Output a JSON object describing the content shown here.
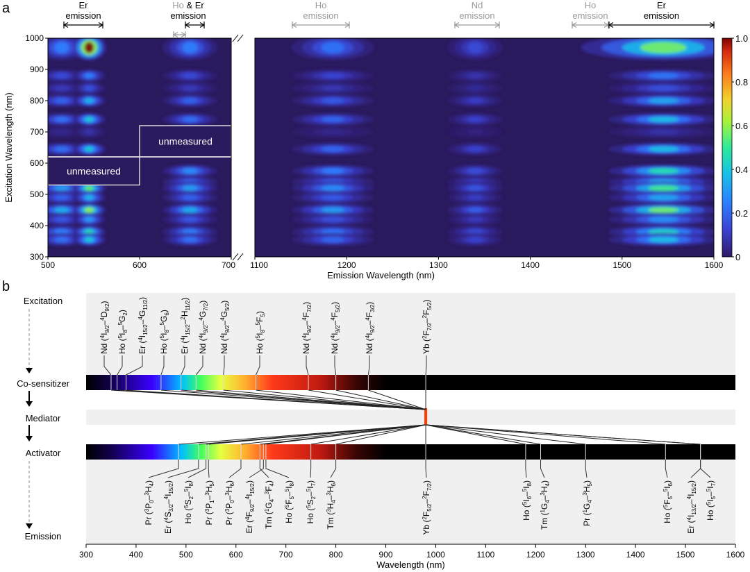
{
  "chart_data": [
    {
      "panel": "a",
      "type": "heatmap",
      "xlabel": "Emission Wavelength (nm)",
      "ylabel": "Excitation Wavelength (nm)",
      "x_left_ticks": [
        500,
        600,
        700
      ],
      "x_right_ticks": [
        1100,
        1200,
        1300,
        1400,
        1500,
        1600
      ],
      "x_left_range": [
        500,
        700
      ],
      "x_right_range": [
        1100,
        1600
      ],
      "ylim": [
        300,
        1000
      ],
      "y_ticks": [
        300,
        400,
        500,
        600,
        700,
        800,
        900,
        1000
      ],
      "colorbar": {
        "ticks": [
          "0",
          "0.2",
          "0.4",
          "0.6",
          "0.8",
          "1.0"
        ],
        "range": [
          0,
          1
        ]
      },
      "region_labels": [
        "unmeasured",
        "unmeasured"
      ],
      "band_labels": [
        {
          "text": [
            "Er",
            "emission"
          ],
          "tone": "black"
        },
        {
          "text": [
            "Ho",
            "emission"
          ],
          "tone": "gray"
        },
        {
          "text": [
            "Nd",
            "emission"
          ],
          "tone": "gray"
        },
        {
          "text": [
            "Ho",
            "emission"
          ],
          "tone": "gray"
        },
        {
          "text": [
            "Er",
            "emission"
          ],
          "tone": "black"
        }
      ],
      "combo_label": {
        "first": "Ho",
        "amp": "&",
        "second": "Er",
        "second_line": "emission"
      },
      "excitation_rows": [
        {
          "y": 970,
          "level": 0.5
        },
        {
          "y": 880,
          "level": 0.3
        },
        {
          "y": 840,
          "level": 0.2
        },
        {
          "y": 800,
          "level": 0.4
        },
        {
          "y": 740,
          "level": 0.45
        },
        {
          "y": 700,
          "level": 0.1
        },
        {
          "y": 645,
          "level": 0.45
        },
        {
          "y": 575,
          "level": 0.55
        },
        {
          "y": 540,
          "level": 0.4
        },
        {
          "y": 520,
          "level": 0.6
        },
        {
          "y": 490,
          "level": 0.4
        },
        {
          "y": 450,
          "level": 0.65
        },
        {
          "y": 420,
          "level": 0.35
        },
        {
          "y": 380,
          "level": 0.5
        },
        {
          "y": 355,
          "level": 0.45
        }
      ],
      "emission_bands": [
        {
          "x": 515,
          "w": 28,
          "gain": 0.6
        },
        {
          "x": 545,
          "w": 18,
          "gain": 1.0
        },
        {
          "x": 655,
          "w": 30,
          "gain": 0.6
        },
        {
          "x": 1185,
          "w": 45,
          "gain": 0.55
        },
        {
          "x": 1340,
          "w": 30,
          "gain": 0.35
        },
        {
          "x": 1545,
          "w": 60,
          "gain": 0.95
        }
      ]
    },
    {
      "panel": "b",
      "type": "diagram",
      "xlabel": "Wavelength (nm)",
      "xlim": [
        300,
        1600
      ],
      "x_ticks": [
        300,
        400,
        500,
        600,
        700,
        800,
        900,
        1000,
        1100,
        1200,
        1300,
        1400,
        1500,
        1600
      ],
      "row_labels": [
        "Excitation",
        "Co-sensitizer",
        "Mediator",
        "Activator",
        "Emission"
      ],
      "mediator_x": 980,
      "excitation_lines": [
        {
          "x": 350,
          "label": [
            "Nd (",
            "4",
            "I",
            "9/2",
            "–",
            "4",
            "D",
            "9/2",
            ")"
          ]
        },
        {
          "x": 362,
          "label": [
            "Ho (",
            "5",
            "I",
            "8",
            "–",
            "5",
            "G",
            "2",
            ")"
          ]
        },
        {
          "x": 380,
          "label": [
            "Er (",
            "4",
            "I",
            "15/2",
            "–",
            "4",
            "G",
            "11/2",
            ")"
          ]
        },
        {
          "x": 450,
          "label": [
            "Ho (",
            "5",
            "I",
            "8",
            "–",
            "5",
            "G",
            "6",
            ")"
          ]
        },
        {
          "x": 490,
          "label": [
            "Er (",
            "4",
            "I",
            "15/2",
            "–",
            "2",
            "H",
            "11/2",
            ")"
          ]
        },
        {
          "x": 520,
          "label": [
            "Nd (",
            "4",
            "I",
            "9/2",
            "–",
            "4",
            "G",
            "7/2",
            ")"
          ]
        },
        {
          "x": 575,
          "label": [
            "Nd (",
            "4",
            "I",
            "9/2",
            "–",
            "4",
            "G",
            "5/2",
            ")"
          ]
        },
        {
          "x": 640,
          "label": [
            "Ho (",
            "5",
            "I",
            "8",
            "–",
            "5",
            "F",
            "5",
            ")"
          ]
        },
        {
          "x": 745,
          "label": [
            "Nd (",
            "4",
            "I",
            "9/2",
            "–",
            "4",
            "F",
            "7/2",
            ")"
          ]
        },
        {
          "x": 800,
          "label": [
            "Nd (",
            "4",
            "I",
            "9/2",
            "–",
            "4",
            "F",
            "5/2",
            ")"
          ]
        },
        {
          "x": 865,
          "label": [
            "Nd (",
            "4",
            "I",
            "9/2",
            "–",
            "4",
            "F",
            "3/2",
            ")"
          ]
        },
        {
          "x": 980,
          "label": [
            "Yb (",
            "2",
            "F",
            "7/2",
            "–",
            "2",
            "F",
            "5/2",
            ")"
          ]
        }
      ],
      "emission_lines": [
        {
          "x": 485,
          "label": [
            "Pr (",
            "3",
            "P",
            "0",
            "–",
            "3",
            "H",
            "4",
            ")"
          ]
        },
        {
          "x": 525,
          "label": [
            "Er (",
            "4",
            "S",
            "3/2",
            "–",
            "4",
            "I",
            "15/2",
            ")"
          ]
        },
        {
          "x": 540,
          "label": [
            "Ho (",
            "5",
            "S",
            "2",
            "–",
            "5",
            "I",
            "8",
            ")"
          ]
        },
        {
          "x": 545,
          "label": [
            "Pr (",
            "3",
            "P",
            "1",
            "–",
            "3",
            "H",
            "5",
            ")"
          ]
        },
        {
          "x": 610,
          "label": [
            "Pr (",
            "3",
            "P",
            "0",
            "–",
            "3",
            "H",
            "6",
            ")"
          ]
        },
        {
          "x": 655,
          "label": [
            "Er (",
            "4",
            "F",
            "9/2",
            "–",
            "4",
            "I",
            "15/2",
            ")"
          ]
        },
        {
          "x": 648,
          "label": [
            "Tm (",
            "1",
            "G",
            "4",
            "–",
            "3",
            "F",
            "4",
            ")"
          ]
        },
        {
          "x": 660,
          "label": [
            "Ho (",
            "5",
            "F",
            "5",
            "–",
            "5",
            "I",
            "8",
            ")"
          ]
        },
        {
          "x": 750,
          "label": [
            "Ho (",
            "5",
            "S",
            "2",
            "–",
            "5",
            "I",
            "7",
            ")"
          ]
        },
        {
          "x": 800,
          "label": [
            "Tm (",
            "3",
            "H",
            "4",
            "–",
            "3",
            "H",
            "6",
            ")"
          ]
        },
        {
          "x": 980,
          "label": [
            "Yb (",
            "2",
            "F",
            "5/2",
            "–",
            "2",
            "F",
            "7/2",
            ")"
          ]
        },
        {
          "x": 1180,
          "label": [
            "Ho (",
            "5",
            "I",
            "6",
            "–",
            "5",
            "I",
            "8",
            ")"
          ]
        },
        {
          "x": 1210,
          "label": [
            "Tm (",
            "1",
            "G",
            "4",
            "–",
            "3",
            "H",
            "4",
            ")"
          ]
        },
        {
          "x": 1300,
          "label": [
            "Pr (",
            "1",
            "G",
            "4",
            "–",
            "3",
            "H",
            "5",
            ")"
          ]
        },
        {
          "x": 1460,
          "label": [
            "Ho (",
            "5",
            "F",
            "5",
            "–",
            "5",
            "I",
            "6",
            ")"
          ]
        },
        {
          "x": 1530,
          "label": [
            "Er (",
            "4",
            "I",
            "13/2",
            "–",
            "4",
            "I",
            "15/2",
            ")"
          ]
        },
        {
          "x": 1530,
          "label": [
            "Ho (",
            "5",
            "I",
            "5",
            "–",
            "5",
            "I",
            "7",
            ")"
          ]
        }
      ]
    }
  ],
  "panel_labels": [
    "a",
    "b"
  ],
  "colors": {
    "heat_bg": "#2a1a5e",
    "bar_bg": "#000000",
    "strip_bg": "#f0f0f0",
    "mediator": "#ff3c00",
    "gray_text": "#9a9a9a"
  }
}
